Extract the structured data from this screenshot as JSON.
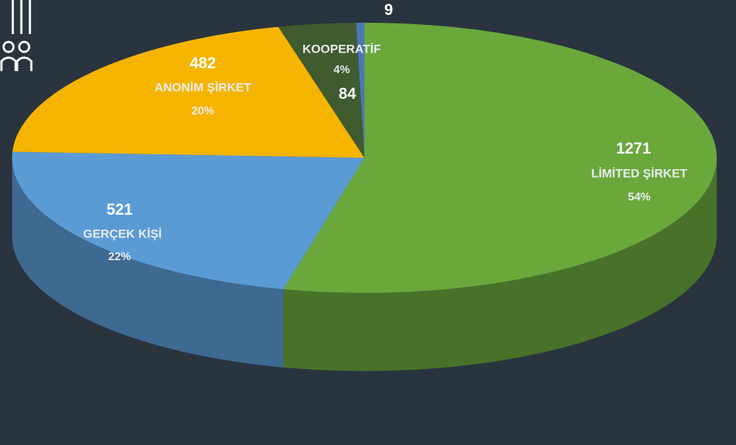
{
  "chart_data": {
    "type": "pie",
    "categories": [
      "LİMİTED ŞİRKET",
      "GERÇEK KİŞİ",
      "ANONİM ŞİRKET",
      "KOOPERATİF",
      null
    ],
    "values": [
      1271,
      521,
      482,
      84,
      9
    ],
    "percent_labels": [
      "54%",
      "22%",
      "20%",
      "4%",
      null
    ],
    "colors": [
      "#6aa83c",
      "#5b9bd5",
      "#f4b400",
      "#3f5b2f",
      "#4a78b5"
    ]
  }
}
